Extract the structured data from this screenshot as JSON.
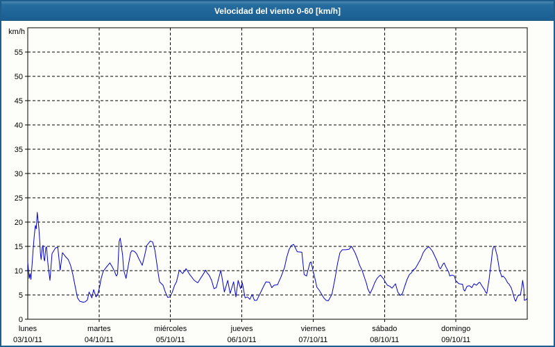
{
  "window": {
    "title": "Velocidad del viento 0-60 [km/h]"
  },
  "colors": {
    "titlebar": "#1E6396",
    "titlebar_highlight": "#4C88B2",
    "frame": "#1E5E8C",
    "chart_background": "#FDFDFA",
    "line": "#0000CC",
    "grid": "#000000",
    "text": "#000000"
  },
  "chart_data": {
    "type": "line",
    "title": "Velocidad del viento 0-60 [km/h]",
    "xlabel": "",
    "ylabel": "km/h",
    "ylim": [
      0,
      60
    ],
    "yticks": [
      0,
      5,
      10,
      15,
      20,
      25,
      30,
      35,
      40,
      45,
      50,
      55
    ],
    "grid": "dashed",
    "legend": "none",
    "x_days": [
      {
        "name": "lunes",
        "date": "03/10/11"
      },
      {
        "name": "martes",
        "date": "04/10/11"
      },
      {
        "name": "miércoles",
        "date": "05/10/11"
      },
      {
        "name": "jueves",
        "date": "06/10/11"
      },
      {
        "name": "viernes",
        "date": "07/10/11"
      },
      {
        "name": "sábado",
        "date": "08/10/11"
      },
      {
        "name": "domingo",
        "date": "09/10/11"
      }
    ],
    "series": [
      {
        "name": "velocidad del viento",
        "unit": "km/h",
        "color": "#0000CC",
        "x_unit": "days_from_start",
        "points": [
          [
            0,
            11.8
          ],
          [
            0.019,
            8.4
          ],
          [
            0.032,
            9.4
          ],
          [
            0.044,
            8.2
          ],
          [
            0.058,
            10.8
          ],
          [
            0.075,
            14.2
          ],
          [
            0.09,
            17.1
          ],
          [
            0.107,
            19.3
          ],
          [
            0.12,
            18.6
          ],
          [
            0.133,
            22
          ],
          [
            0.156,
            18.8
          ],
          [
            0.168,
            16.1
          ],
          [
            0.178,
            13.5
          ],
          [
            0.188,
            12.3
          ],
          [
            0.204,
            14.9
          ],
          [
            0.214,
            15.2
          ],
          [
            0.227,
            12.5
          ],
          [
            0.236,
            12
          ],
          [
            0.253,
            14.7
          ],
          [
            0.263,
            14.9
          ],
          [
            0.279,
            12
          ],
          [
            0.295,
            9.9
          ],
          [
            0.311,
            8
          ],
          [
            0.34,
            13.5
          ],
          [
            0.389,
            14.7
          ],
          [
            0.421,
            14.8
          ],
          [
            0.454,
            10.1
          ],
          [
            0.486,
            13.7
          ],
          [
            0.535,
            12.8
          ],
          [
            0.567,
            12.3
          ],
          [
            0.6,
            11.1
          ],
          [
            0.632,
            9.2
          ],
          [
            0.664,
            6.8
          ],
          [
            0.697,
            4.4
          ],
          [
            0.729,
            3.7
          ],
          [
            0.778,
            3.5
          ],
          [
            0.807,
            3.6
          ],
          [
            0.836,
            4
          ],
          [
            0.859,
            5.6
          ],
          [
            0.898,
            4.4
          ],
          [
            0.924,
            6.1
          ],
          [
            0.956,
            4.6
          ],
          [
            0.978,
            5
          ],
          [
            1.005,
            6.5
          ],
          [
            1.028,
            8.3
          ],
          [
            1.056,
            9.8
          ],
          [
            1.089,
            10.5
          ],
          [
            1.118,
            11
          ],
          [
            1.15,
            11.6
          ],
          [
            1.183,
            10.8
          ],
          [
            1.215,
            9.9
          ],
          [
            1.241,
            8.9
          ],
          [
            1.259,
            9.3
          ],
          [
            1.28,
            16
          ],
          [
            1.296,
            16.7
          ],
          [
            1.329,
            13.2
          ],
          [
            1.345,
            10.1
          ],
          [
            1.378,
            8.4
          ],
          [
            1.41,
            11.1
          ],
          [
            1.442,
            13.7
          ],
          [
            1.458,
            14.1
          ],
          [
            1.491,
            14
          ],
          [
            1.524,
            13.5
          ],
          [
            1.556,
            12.5
          ],
          [
            1.604,
            11.1
          ],
          [
            1.636,
            13
          ],
          [
            1.669,
            15.2
          ],
          [
            1.718,
            16.1
          ],
          [
            1.75,
            15.9
          ],
          [
            1.782,
            14.2
          ],
          [
            1.799,
            12.5
          ],
          [
            1.831,
            9.2
          ],
          [
            1.847,
            7.7
          ],
          [
            1.896,
            7
          ],
          [
            1.928,
            5.6
          ],
          [
            1.961,
            4.5
          ],
          [
            1.993,
            4.6
          ],
          [
            2.026,
            5.6
          ],
          [
            2.058,
            7
          ],
          [
            2.084,
            7.7
          ],
          [
            2.123,
            10.1
          ],
          [
            2.171,
            9.4
          ],
          [
            2.22,
            10.4
          ],
          [
            2.265,
            9.3
          ],
          [
            2.333,
            8
          ],
          [
            2.382,
            7.5
          ],
          [
            2.43,
            8.6
          ],
          [
            2.496,
            10.1
          ],
          [
            2.511,
            9.6
          ],
          [
            2.544,
            9
          ],
          [
            2.576,
            8
          ],
          [
            2.609,
            6.3
          ],
          [
            2.642,
            6.5
          ],
          [
            2.706,
            10.1
          ],
          [
            2.755,
            5.6
          ],
          [
            2.803,
            8
          ],
          [
            2.836,
            5.3
          ],
          [
            2.885,
            7.7
          ],
          [
            2.917,
            4.6
          ],
          [
            2.949,
            8
          ],
          [
            2.982,
            6.3
          ],
          [
            3.007,
            7.5
          ],
          [
            3.046,
            4.4
          ],
          [
            3.079,
            4.6
          ],
          [
            3.112,
            4.1
          ],
          [
            3.144,
            5.1
          ],
          [
            3.176,
            3.9
          ],
          [
            3.209,
            3.9
          ],
          [
            3.257,
            5.3
          ],
          [
            3.306,
            6.8
          ],
          [
            3.338,
            7.7
          ],
          [
            3.387,
            7.6
          ],
          [
            3.42,
            6.5
          ],
          [
            3.452,
            7
          ],
          [
            3.5,
            7.1
          ],
          [
            3.549,
            8.7
          ],
          [
            3.597,
            10.6
          ],
          [
            3.63,
            12.8
          ],
          [
            3.663,
            14.4
          ],
          [
            3.695,
            15.2
          ],
          [
            3.727,
            15.4
          ],
          [
            3.776,
            13.9
          ],
          [
            3.841,
            13.8
          ],
          [
            3.873,
            9.2
          ],
          [
            3.906,
            8.9
          ],
          [
            3.954,
            11.6
          ],
          [
            3.97,
            11.8
          ],
          [
            3.996,
            10.1
          ],
          [
            4.028,
            8.2
          ],
          [
            4.051,
            6.6
          ],
          [
            4.083,
            6
          ],
          [
            4.116,
            5.2
          ],
          [
            4.148,
            4.4
          ],
          [
            4.181,
            3.9
          ],
          [
            4.213,
            3.8
          ],
          [
            4.262,
            5.1
          ],
          [
            4.31,
            8.7
          ],
          [
            4.343,
            11.6
          ],
          [
            4.375,
            13.7
          ],
          [
            4.408,
            14.3
          ],
          [
            4.456,
            14.3
          ],
          [
            4.502,
            14.4
          ],
          [
            4.538,
            15
          ],
          [
            4.586,
            13.7
          ],
          [
            4.619,
            12.5
          ],
          [
            4.651,
            11.1
          ],
          [
            4.684,
            10.1
          ],
          [
            4.716,
            8.7
          ],
          [
            4.748,
            7.3
          ],
          [
            4.764,
            6.3
          ],
          [
            4.797,
            5.3
          ],
          [
            4.83,
            6.3
          ],
          [
            4.862,
            7.5
          ],
          [
            4.894,
            8.4
          ],
          [
            4.927,
            8.9
          ],
          [
            4.943,
            9.1
          ],
          [
            4.991,
            8.2
          ],
          [
            5.008,
            7.7
          ],
          [
            5.04,
            7
          ],
          [
            5.073,
            6.8
          ],
          [
            5.105,
            6.4
          ],
          [
            5.137,
            7
          ],
          [
            5.153,
            7.3
          ],
          [
            5.186,
            5.6
          ],
          [
            5.219,
            4.9
          ],
          [
            5.251,
            5.3
          ],
          [
            5.283,
            6.8
          ],
          [
            5.316,
            8.2
          ],
          [
            5.348,
            9.2
          ],
          [
            5.38,
            9.6
          ],
          [
            5.396,
            10.1
          ],
          [
            5.428,
            10.4
          ],
          [
            5.445,
            10.8
          ],
          [
            5.477,
            11.6
          ],
          [
            5.51,
            12.5
          ],
          [
            5.542,
            13.7
          ],
          [
            5.574,
            14.4
          ],
          [
            5.607,
            14.8
          ],
          [
            5.623,
            14.9
          ],
          [
            5.672,
            14
          ],
          [
            5.704,
            13
          ],
          [
            5.736,
            12
          ],
          [
            5.769,
            10.6
          ],
          [
            5.785,
            10.4
          ],
          [
            5.817,
            11.3
          ],
          [
            5.834,
            11.6
          ],
          [
            5.866,
            10.6
          ],
          [
            5.899,
            9.7
          ],
          [
            5.914,
            8.9
          ],
          [
            5.947,
            9.1
          ],
          [
            5.979,
            8.9
          ],
          [
            5.996,
            8
          ],
          [
            6.028,
            7.5
          ],
          [
            6.044,
            7.3
          ],
          [
            6.093,
            7.2
          ],
          [
            6.108,
            6.1
          ],
          [
            6.125,
            5.8
          ],
          [
            6.157,
            6.8
          ],
          [
            6.19,
            6.9
          ],
          [
            6.222,
            6.5
          ],
          [
            6.254,
            7.3
          ],
          [
            6.287,
            7
          ],
          [
            6.319,
            7.5
          ],
          [
            6.335,
            7.6
          ],
          [
            6.368,
            6.8
          ],
          [
            6.4,
            6.1
          ],
          [
            6.416,
            5.6
          ],
          [
            6.433,
            5.3
          ],
          [
            6.465,
            8.2
          ],
          [
            6.481,
            10.1
          ],
          [
            6.497,
            12
          ],
          [
            6.514,
            14.2
          ],
          [
            6.53,
            15
          ],
          [
            6.546,
            14.9
          ],
          [
            6.579,
            13
          ],
          [
            6.595,
            11.6
          ],
          [
            6.611,
            10.1
          ],
          [
            6.644,
            8.7
          ],
          [
            6.66,
            8.9
          ],
          [
            6.692,
            8.4
          ],
          [
            6.725,
            7.5
          ],
          [
            6.741,
            7.3
          ],
          [
            6.774,
            6.5
          ],
          [
            6.79,
            5.8
          ],
          [
            6.823,
            4.1
          ],
          [
            6.839,
            3.7
          ],
          [
            6.855,
            4.4
          ],
          [
            6.872,
            4.9
          ],
          [
            6.904,
            5
          ],
          [
            6.92,
            6.3
          ],
          [
            6.936,
            8
          ],
          [
            6.952,
            6.3
          ],
          [
            6.959,
            3.9
          ],
          [
            6.981,
            4
          ],
          [
            7,
            4.3
          ]
        ]
      }
    ]
  }
}
